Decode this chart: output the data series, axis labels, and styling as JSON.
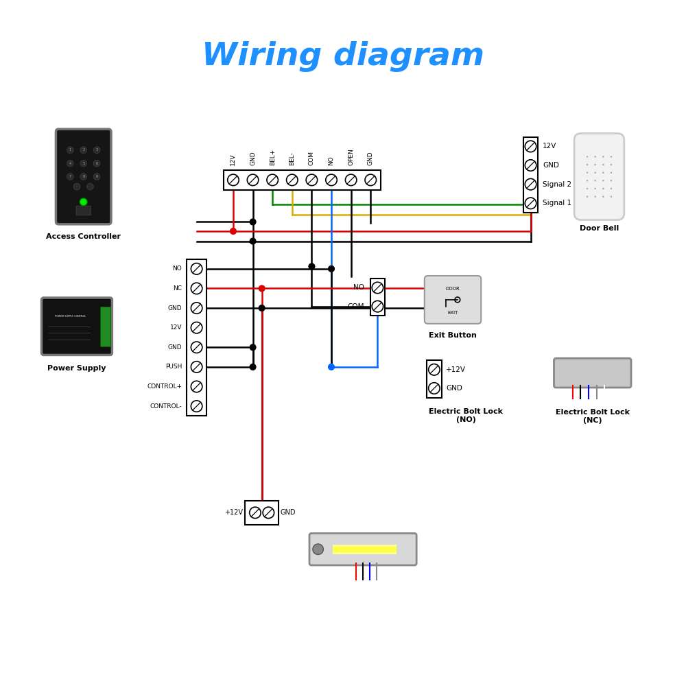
{
  "title": "Wiring diagram",
  "title_color": "#1E90FF",
  "title_fontsize": 34,
  "bg_color": "#FFFFFF",
  "controller_terminals": [
    "12V",
    "GND",
    "BEL+",
    "BEL-",
    "COM",
    "NO",
    "OPEN",
    "GND"
  ],
  "power_terminals": [
    "CONTROL-",
    "CONTROL+",
    "PUSH",
    "GND",
    "12V",
    "GND",
    "NC",
    "NO"
  ],
  "doorbell_terminals": [
    "Signal 1",
    "Signal 2",
    "GND",
    "12V"
  ],
  "lock_no_terminals": [
    "GND",
    "+12V"
  ],
  "exit_button_terminals": [
    "COM",
    "NO"
  ],
  "wire_black": "#000000",
  "wire_red": "#DD0000",
  "wire_blue": "#0066FF",
  "wire_green": "#008800",
  "wire_yellow": "#DDAA00",
  "lw": 1.8
}
